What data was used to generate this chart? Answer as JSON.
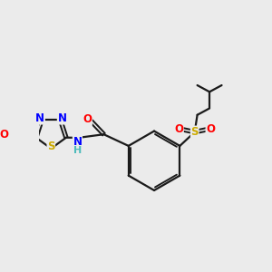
{
  "background_color": "#ebebeb",
  "bond_color": "#1a1a1a",
  "bond_lw": 1.6,
  "colors": {
    "N": "#0000ff",
    "O": "#ff0000",
    "S": "#ccaa00",
    "C": "#1a1a1a",
    "H": "#4dbbbb"
  },
  "fs": 8.5
}
